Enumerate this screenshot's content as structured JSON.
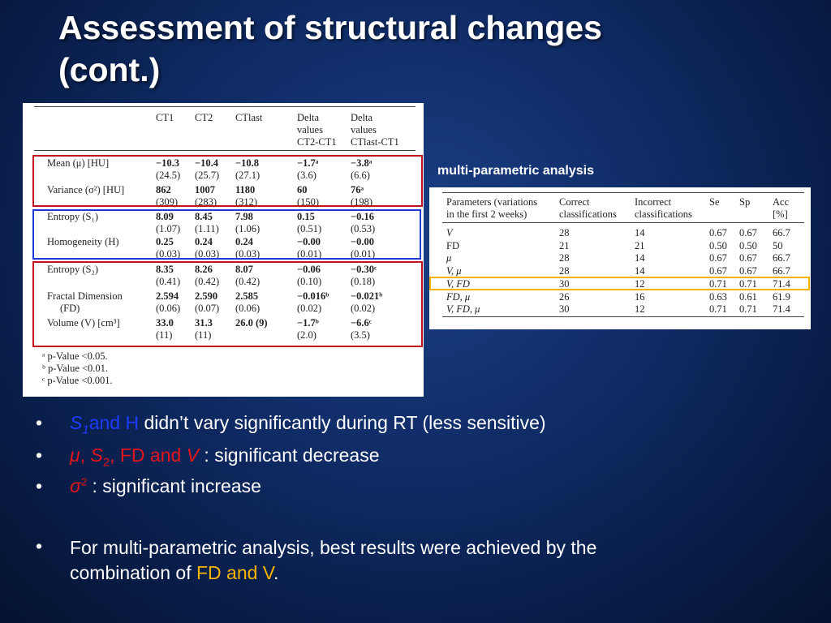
{
  "slide": {
    "title_line1": "Assessment of structural changes",
    "title_line2": "(cont.)"
  },
  "colors": {
    "box_red": "#c1121f",
    "box_blue": "#1f3bd6",
    "box_yellow": "#f5b400"
  },
  "table1": {
    "headers": [
      "CT1",
      "CT2",
      "CTlast",
      "Delta values CT2-CT1",
      "Delta values CTlast-CT1"
    ],
    "header_lines": {
      "h4": [
        "Delta",
        "values",
        "CT2-CT1"
      ],
      "h5": [
        "Delta",
        "values",
        "CTlast-CT1"
      ]
    },
    "rows": [
      {
        "label": "Mean (μ) [HU]",
        "main": [
          "−10.3",
          "−10.4",
          "−10.8",
          "−1.7ᵃ",
          "−3.8ᵃ"
        ],
        "sd": [
          "(24.5)",
          "(25.7)",
          "(27.1)",
          "(3.6)",
          "(6.6)"
        ]
      },
      {
        "label": "Variance (σ²) [HU]",
        "main": [
          "862",
          "1007",
          "1180",
          "60",
          "76ᵃ"
        ],
        "sd": [
          "(309)",
          "(283)",
          "(312)",
          "(150)",
          "(198)"
        ]
      },
      {
        "label": "Entropy (S₁)",
        "main": [
          "8.09",
          "8.45",
          "7.98",
          "0.15",
          "−0.16"
        ],
        "sd": [
          "(1.07)",
          "(1.11)",
          "(1.06)",
          "(0.51)",
          "(0.53)"
        ]
      },
      {
        "label": "Homogeneity (H)",
        "main": [
          "0.25",
          "0.24",
          "0.24",
          "−0.00",
          "−0.00"
        ],
        "sd": [
          "(0.03)",
          "(0.03)",
          "(0.03)",
          "(0.01)",
          "(0.01)"
        ]
      },
      {
        "label": "Entropy (S₂)",
        "main": [
          "8.35",
          "8.26",
          "8.07",
          "−0.06",
          "−0.30ᶜ"
        ],
        "sd": [
          "(0.41)",
          "(0.42)",
          "(0.42)",
          "(0.10)",
          "(0.18)"
        ]
      },
      {
        "label": "Fractal Dimension",
        "label2": "(FD)",
        "main": [
          "2.594",
          "2.590",
          "2.585",
          "−0.016ᵇ",
          "−0.021ᵇ"
        ],
        "sd": [
          "(0.06)",
          "(0.07)",
          "(0.06)",
          "(0.02)",
          "(0.02)"
        ]
      },
      {
        "label": "Volume (V) [cm³]",
        "main": [
          "33.0",
          "31.3",
          "26.0 (9)",
          "−1.7ᵇ",
          "−6.6ᶜ"
        ],
        "sd": [
          "(11)",
          "(11)",
          "",
          "(2.0)",
          "(3.5)"
        ]
      }
    ],
    "footnotes": [
      "ᵃ  p-Value <0.05.",
      "ᵇ  p-Value <0.01.",
      "ᶜ  p-Value <0.001."
    ]
  },
  "mpa": {
    "label": "multi-parametric analysis",
    "header_lines": [
      [
        "Parameters (variations",
        "in the first 2 weeks)"
      ],
      [
        "Correct",
        "classifications"
      ],
      [
        "Incorrect",
        "classifications"
      ],
      [
        "Se",
        ""
      ],
      [
        "Sp",
        ""
      ],
      [
        "Acc",
        "[%]"
      ]
    ],
    "rows": [
      [
        "V",
        "28",
        "14",
        "0.67",
        "0.67",
        "66.7"
      ],
      [
        "FD",
        "21",
        "21",
        "0.50",
        "0.50",
        "50"
      ],
      [
        "μ",
        "28",
        "14",
        "0.67",
        "0.67",
        "66.7"
      ],
      [
        "V, μ",
        "28",
        "14",
        "0.67",
        "0.67",
        "66.7"
      ],
      [
        "V, FD",
        "30",
        "12",
        "0.71",
        "0.71",
        "71.4"
      ],
      [
        "FD, μ",
        "26",
        "16",
        "0.63",
        "0.61",
        "61.9"
      ],
      [
        "V, FD, μ",
        "30",
        "12",
        "0.71",
        "0.71",
        "71.4"
      ]
    ]
  },
  "bullets": {
    "dot": "•",
    "b1": {
      "s": "S",
      "sub1": "1",
      "and_h": "and H",
      "rest": " didn’t vary significantly during RT (less sensitive)"
    },
    "b2": {
      "mu": "μ",
      "comma1": ", ",
      "s": "S",
      "sub2": "2",
      "fd": ", FD and ",
      "v": "V",
      "rest": " : significant decrease"
    },
    "b3": {
      "sigma": "σ",
      "sq": "2",
      "rest": " : significant increase"
    },
    "b4": {
      "line1": "For multi-parametric analysis, best results were achieved by the",
      "line2_pre": "combination of ",
      "line2_hl": "FD and V",
      "line2_post": "."
    }
  }
}
